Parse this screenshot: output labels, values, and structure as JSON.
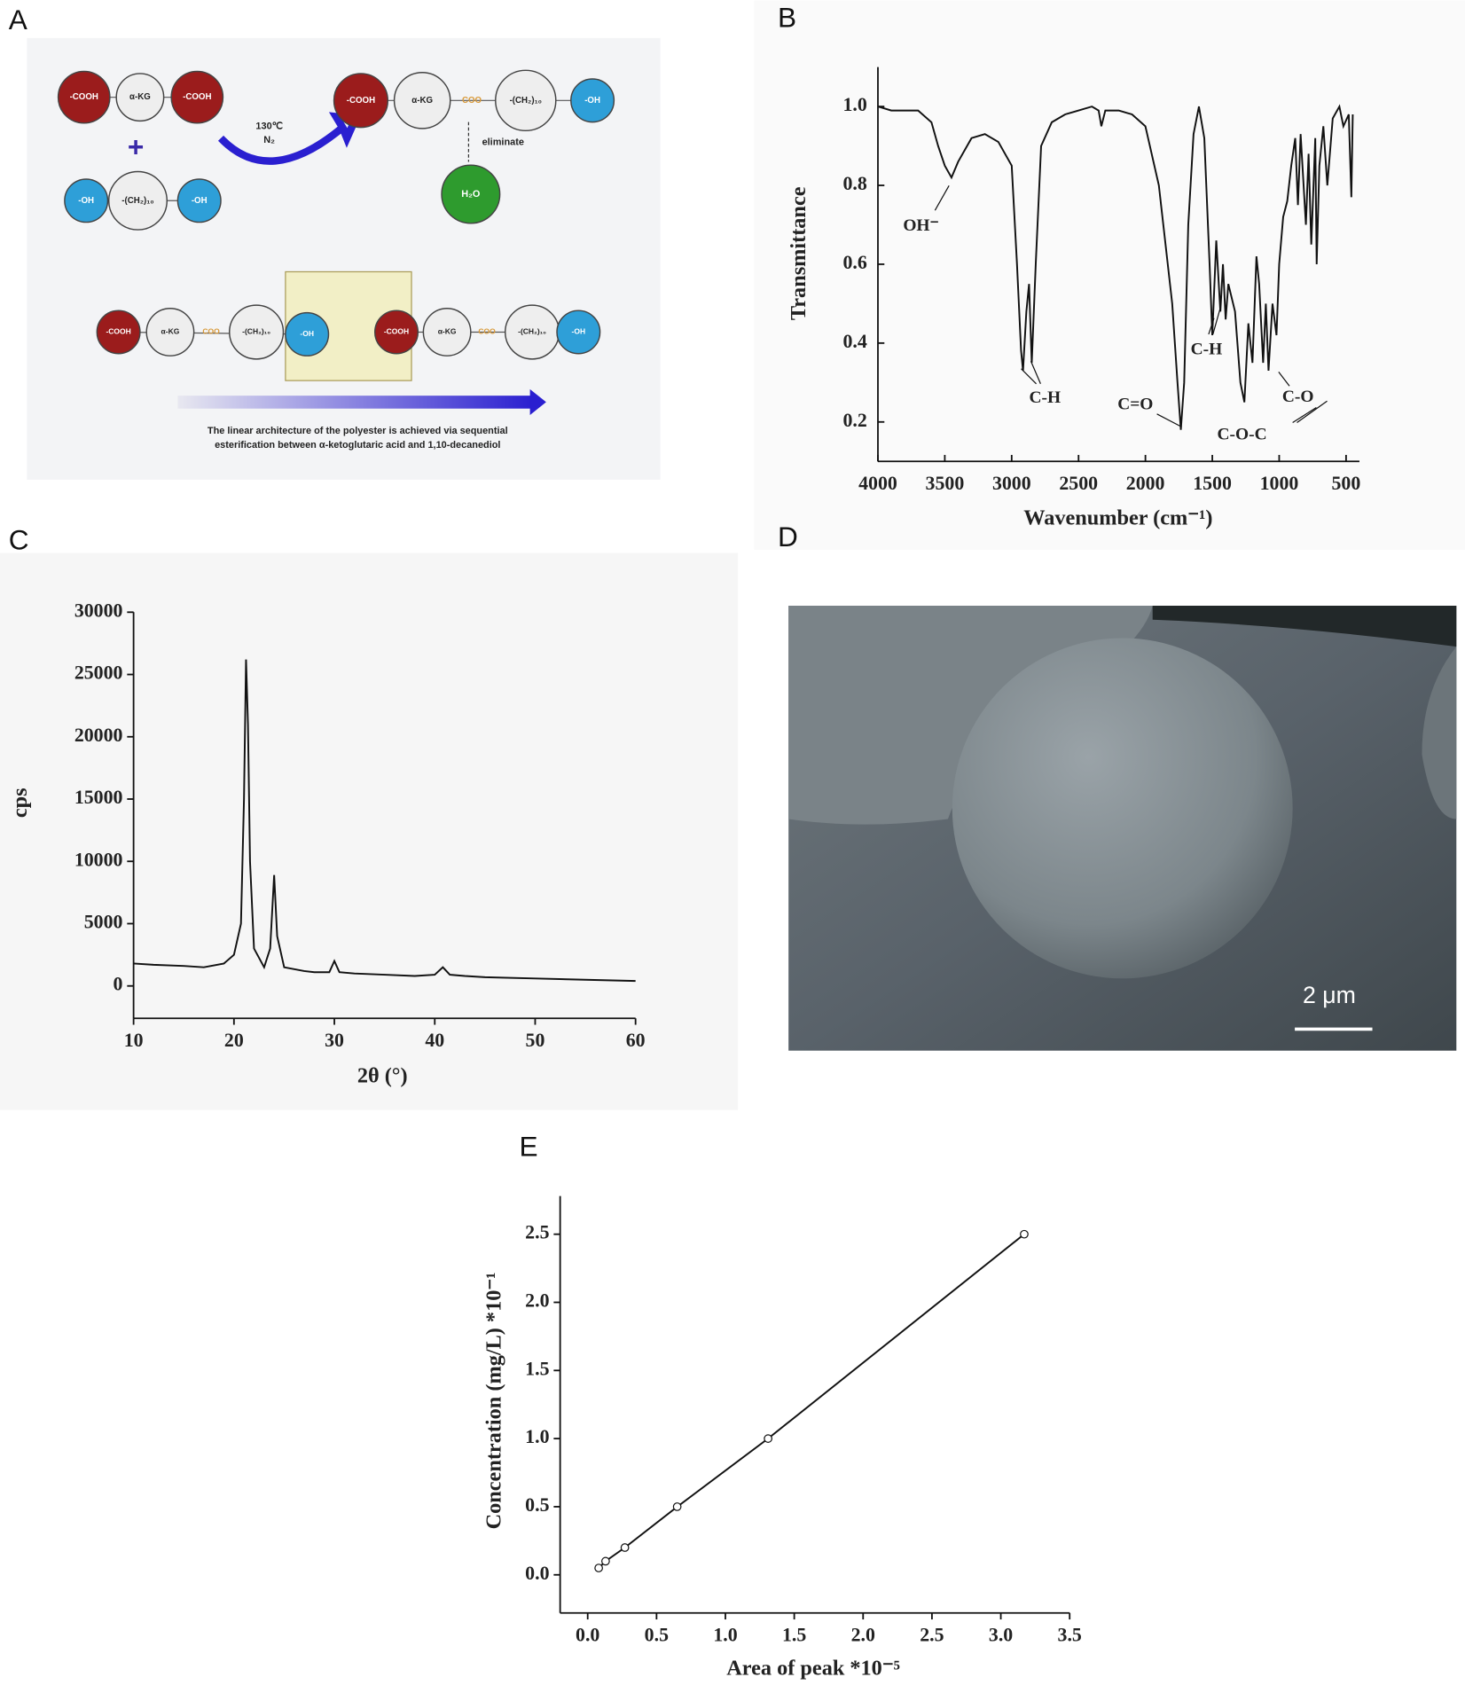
{
  "panel_labels": [
    "A",
    "B",
    "C",
    "D",
    "E"
  ],
  "diagram": {
    "labels": [
      "-COOH",
      "α-KG",
      "-COOH",
      "+",
      "-OH",
      "-(CH₂)₁₀",
      "-OH",
      "130℃",
      "N₂",
      "-COOH",
      "α-KG",
      "COO",
      "-(CH₂)₁₀",
      "-OH",
      "eliminate",
      "H₂O",
      "-COOH",
      "α-KG",
      "COO",
      "-(CH₂)₁₀",
      "-OH",
      "-COOH",
      "α-KG",
      "COO",
      "-(CH₂)₁₀",
      "-OH"
    ],
    "caption": [
      "The linear architecture of the polyester is achieved via sequential",
      "esterification between α-ketoglutaric acid and 1,10-decanediol"
    ]
  },
  "image": {
    "scale_bar": "2 μm"
  },
  "chart_data": [
    {
      "type": "line",
      "color": "#111111",
      "ylabel": "Transmittance",
      "xlabel": "Wavenumber (cm⁻¹)",
      "x": [
        4000,
        3900,
        3800,
        3700,
        3600,
        3550,
        3500,
        3450,
        3400,
        3300,
        3200,
        3100,
        3000,
        2960,
        2930,
        2915,
        2890,
        2870,
        2850,
        2820,
        2780,
        2700,
        2600,
        2500,
        2400,
        2350,
        2330,
        2300,
        2200,
        2100,
        2000,
        1900,
        1800,
        1760,
        1735,
        1710,
        1680,
        1640,
        1600,
        1560,
        1520,
        1500,
        1470,
        1440,
        1420,
        1400,
        1380,
        1330,
        1290,
        1260,
        1230,
        1200,
        1170,
        1150,
        1120,
        1100,
        1080,
        1050,
        1020,
        1000,
        970,
        940,
        910,
        880,
        860,
        840,
        800,
        780,
        760,
        730,
        720,
        700,
        670,
        640,
        600,
        550,
        520,
        480,
        460,
        450
      ],
      "values": [
        1.0,
        0.99,
        0.99,
        0.99,
        0.96,
        0.9,
        0.85,
        0.82,
        0.86,
        0.92,
        0.93,
        0.91,
        0.85,
        0.6,
        0.38,
        0.33,
        0.48,
        0.55,
        0.35,
        0.6,
        0.9,
        0.96,
        0.98,
        0.99,
        1.0,
        0.99,
        0.95,
        0.99,
        0.99,
        0.98,
        0.95,
        0.8,
        0.5,
        0.3,
        0.18,
        0.3,
        0.7,
        0.93,
        1.0,
        0.92,
        0.6,
        0.42,
        0.66,
        0.48,
        0.6,
        0.46,
        0.55,
        0.48,
        0.3,
        0.25,
        0.45,
        0.35,
        0.62,
        0.55,
        0.35,
        0.5,
        0.33,
        0.5,
        0.42,
        0.6,
        0.72,
        0.76,
        0.85,
        0.92,
        0.75,
        0.93,
        0.7,
        0.88,
        0.65,
        0.92,
        0.6,
        0.85,
        0.95,
        0.8,
        0.97,
        1.0,
        0.95,
        0.98,
        0.77,
        0.98
      ],
      "xlim": [
        4000,
        400
      ],
      "ylim": [
        0.1,
        1.1
      ],
      "xticks": [
        4000,
        3500,
        3000,
        2500,
        2000,
        1500,
        1000,
        500
      ],
      "yticks": [
        0.2,
        0.4,
        0.6,
        0.8,
        {
          "value": 1,
          "label": "1.0"
        }
      ],
      "annotations": [
        "OH⁻",
        "C-H",
        "C=O",
        "C-H",
        "C-O-C",
        "C-O"
      ]
    },
    {
      "type": "line",
      "color": "#111111",
      "ylabel": "cps",
      "xlabel": "2θ (°)",
      "x": [
        10,
        12,
        15,
        17,
        19,
        20,
        20.7,
        21,
        21.2,
        21.4,
        21.6,
        22,
        23,
        23.6,
        24,
        24.3,
        25,
        27,
        28,
        29.5,
        30,
        30.5,
        32,
        35,
        38,
        40,
        40.8,
        41.5,
        43,
        45,
        50,
        55,
        60
      ],
      "values": [
        1800,
        1700,
        1600,
        1500,
        1800,
        2500,
        5000,
        15000,
        26200,
        21000,
        10000,
        3000,
        1500,
        3000,
        8900,
        4000,
        1500,
        1200,
        1100,
        1100,
        2000,
        1100,
        1000,
        900,
        800,
        900,
        1500,
        900,
        800,
        700,
        600,
        500,
        400
      ],
      "xlim": [
        10,
        60
      ],
      "ylim": [
        -2600,
        30000
      ],
      "xticks": [
        10,
        20,
        30,
        40,
        50,
        60
      ],
      "yticks": [
        0,
        5000,
        10000,
        15000,
        20000,
        25000,
        30000
      ]
    },
    {
      "type": "line",
      "markers": true,
      "color": "#111111",
      "ylabel": "Concentration (mg/L) *10⁻¹",
      "xlabel": "Area of peak *10⁻⁵",
      "x": [
        0.08,
        0.13,
        0.27,
        0.65,
        1.31,
        3.17
      ],
      "values": [
        0.05,
        0.1,
        0.2,
        0.5,
        1,
        2.5
      ],
      "xlim": [
        -0.2,
        3.5
      ],
      "ylim": [
        -0.28,
        2.78
      ],
      "xticks": [
        {
          "value": 0,
          "label": "0.0"
        },
        0.5,
        {
          "value": 1,
          "label": "1.0"
        },
        1.5,
        {
          "value": 2,
          "label": "2.0"
        },
        2.5,
        {
          "value": 3,
          "label": "3.0"
        },
        3.5
      ],
      "yticks": [
        {
          "value": 0,
          "label": "0.0"
        },
        0.5,
        {
          "value": 1,
          "label": "1.0"
        },
        1.5,
        {
          "value": 2,
          "label": "2.0"
        },
        2.5
      ]
    }
  ]
}
